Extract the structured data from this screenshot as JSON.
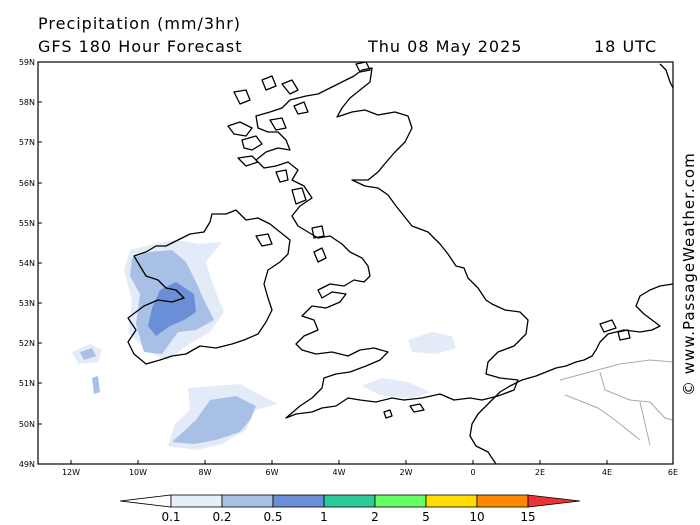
{
  "header": {
    "title": "Precipitation (mm/3hr)",
    "subtitle": "GFS 180 Hour Forecast",
    "date": "Thu 08 May 2025",
    "time": "18 UTC"
  },
  "credit": "© www.PassageWeather.com",
  "map": {
    "lat_labels": [
      "59N",
      "58N",
      "57N",
      "56N",
      "55N",
      "54N",
      "53N",
      "52N",
      "51N",
      "50N",
      "49N"
    ],
    "lon_labels": [
      "12W",
      "10W",
      "8W",
      "6W",
      "4W",
      "2W",
      "0",
      "2E",
      "4E",
      "6E"
    ]
  },
  "legend": {
    "labels": [
      "0.1",
      "0.2",
      "0.5",
      "1",
      "2",
      "5",
      "10",
      "15"
    ],
    "colors": [
      "#ffffff",
      "#e6eefa",
      "#a8c0e6",
      "#6b8fd6",
      "#2ec99a",
      "#66ff66",
      "#ffdd00",
      "#ff8800",
      "#ee3333"
    ]
  }
}
